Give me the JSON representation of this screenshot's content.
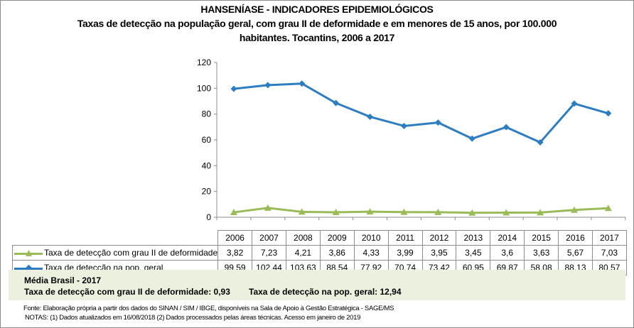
{
  "title": "HANSENÍASE - INDICADORES EPIDEMIOLÓGICOS",
  "subtitle_line1": "Taxas de detecção na população geral, com grau II de deformidade e em menores de 15 anos, por 100.000",
  "subtitle_line2": "habitantes. Tocantins, 2006 a 2017",
  "chart_data": {
    "type": "line",
    "title": "HANSENÍASE - INDICADORES EPIDEMIOLÓGICOS",
    "categories": [
      "2006",
      "2007",
      "2008",
      "2009",
      "2010",
      "2011",
      "2012",
      "2013",
      "2014",
      "2015",
      "2016",
      "2017"
    ],
    "ylim": [
      0,
      120
    ],
    "yticks": [
      "0",
      "20",
      "40",
      "60",
      "80",
      "100",
      "120"
    ],
    "grid": false,
    "legend": "data-table",
    "series": [
      {
        "name": "Taxa de detecção com grau II de deformidade",
        "color": "#9bbb59",
        "marker": "triangle",
        "values": [
          3.82,
          7.23,
          4.21,
          3.86,
          4.33,
          3.99,
          3.95,
          3.45,
          3.6,
          3.63,
          5.67,
          7.03
        ],
        "labels": [
          "3,82",
          "7,23",
          "4,21",
          "3,86",
          "4,33",
          "3,99",
          "3,95",
          "3,45",
          "3,6",
          "3,63",
          "5,67",
          "7,03"
        ]
      },
      {
        "name": "Taxa de detecção na pop. geral",
        "color": "#2e7dc0",
        "marker": "diamond",
        "values": [
          99.59,
          102.44,
          103.63,
          88.54,
          77.92,
          70.74,
          73.42,
          60.95,
          69.87,
          58.08,
          88.13,
          80.57
        ],
        "labels": [
          "99,59",
          "102,44",
          "103,63",
          "88,54",
          "77,92",
          "70,74",
          "73,42",
          "60,95",
          "69,87",
          "58,08",
          "88,13",
          "80,57"
        ]
      }
    ]
  },
  "summary": {
    "heading": "Média Brasil - 2017",
    "item1": "Taxa  de detecção com grau II de deformidade: 0,93",
    "item2": "Taxa de detecção na pop. geral: 12,94"
  },
  "footer": {
    "source": "Fonte:  Elaboração própria a partir dos dados do  SINAN / SIM / IBGE, disponíveis na Sala de Apoio à Gestão Estratégica -  SAGE/MS",
    "notes": "NOTAS: (1) Dados atualizados em 16/08/2018 (2) Dados processados pelas áreas técnicas. Acesso em janeiro de 2019"
  }
}
